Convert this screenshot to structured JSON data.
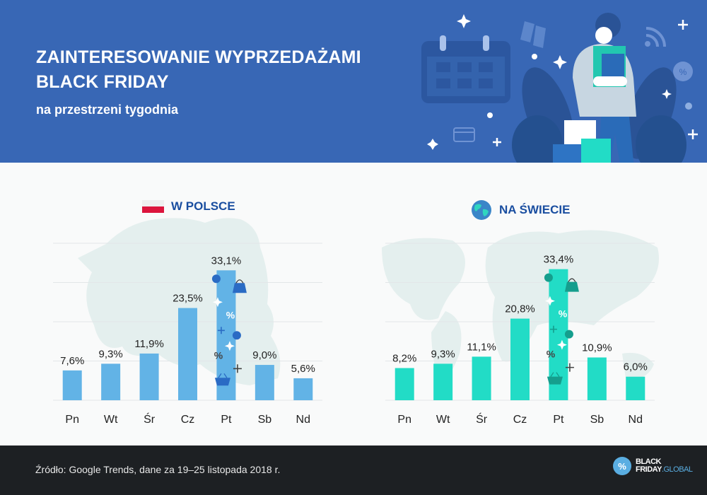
{
  "header": {
    "title_line1": "ZAINTERESOWANIE WYPRZEDAŻAMI",
    "title_line2": "BLACK FRIDAY",
    "subtitle": "na przestrzeni tygodnia"
  },
  "colors": {
    "header_bg": "#3867b5",
    "poland_bar": "#62b3e6",
    "world_bar": "#22dcc6",
    "panel_title": "#1a4ea0",
    "footer_bg": "#1d2023"
  },
  "chart_data": [
    {
      "type": "bar",
      "title": "W POLSCE",
      "icon": "poland-flag-icon",
      "categories": [
        "Pn",
        "Wt",
        "Śr",
        "Cz",
        "Pt",
        "Sb",
        "Nd"
      ],
      "values": [
        7.6,
        9.3,
        11.9,
        23.5,
        33.1,
        9.0,
        5.6
      ],
      "labels": [
        "7,6%",
        "9,3%",
        "11,9%",
        "23,5%",
        "33,1%",
        "9,0%",
        "5,6%"
      ],
      "ylim": [
        0,
        40
      ],
      "grid": true,
      "highlight": "Pt"
    },
    {
      "type": "bar",
      "title": "NA ŚWIECIE",
      "icon": "globe-icon",
      "categories": [
        "Pn",
        "Wt",
        "Śr",
        "Cz",
        "Pt",
        "Sb",
        "Nd"
      ],
      "values": [
        8.2,
        9.3,
        11.1,
        20.8,
        33.4,
        10.9,
        6.0
      ],
      "labels": [
        "8,2%",
        "9,3%",
        "11,1%",
        "20,8%",
        "33,4%",
        "10,9%",
        "6,0%"
      ],
      "ylim": [
        0,
        40
      ],
      "grid": true,
      "highlight": "Pt"
    }
  ],
  "footer": {
    "source": "Źródło: Google Trends, dane za 19–25 listopada 2018 r.",
    "logo_line1": "BLACK",
    "logo_line2a": "FRIDAY",
    "logo_line2b": ".GLOBAL",
    "logo_symbol": "%"
  }
}
